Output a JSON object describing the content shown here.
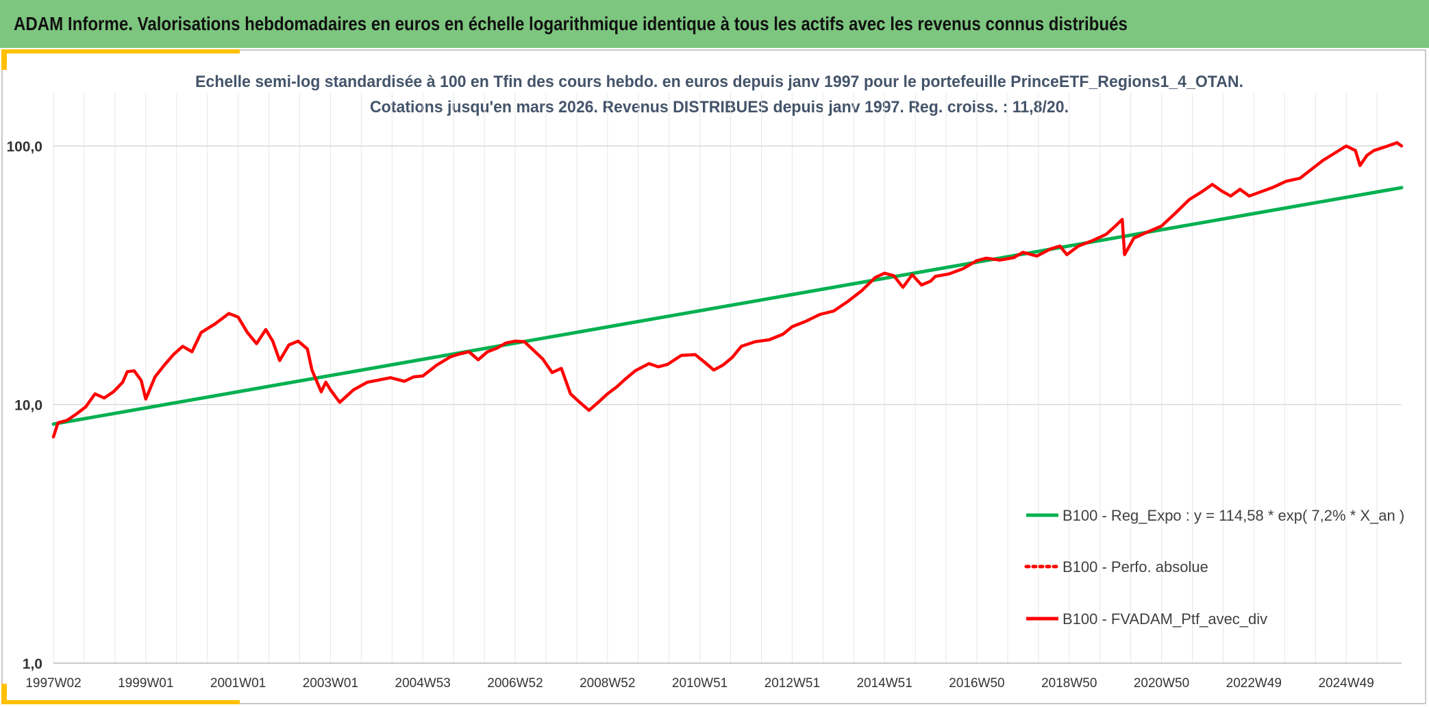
{
  "header": {
    "title": "ADAM Informe. Valorisations hebdomadaires en euros en échelle logarithmique identique à tous les actifs avec les revenus connus distribués"
  },
  "colors": {
    "header_bg": "#7dc67f",
    "accent": "#ffc000",
    "regression": "#00b050",
    "portfolio": "#ff0000",
    "grid": "#d9d9d9",
    "text": "#44546a"
  },
  "chart_data": {
    "type": "line",
    "title": "Echelle semi-log standardisée à 100 en Tfin des cours hebdo. en euros depuis janv 1997 pour le portefeuille PrinceETF_Regions1_4_OTAN.",
    "subtitle": "Cotations jusqu'en mars 2026. Revenus DISTRIBUES depuis janv 1997. Reg. croiss. : 11,8/20.",
    "y_scale": "log",
    "ylim": [
      1,
      160
    ],
    "y_ticks": [
      "1,0",
      "10,0",
      "100,0"
    ],
    "x_ticks": [
      "1997W02",
      "1999W01",
      "2001W01",
      "2003W01",
      "2004W53",
      "2006W52",
      "2008W52",
      "2010W51",
      "2012W51",
      "2014W51",
      "2016W50",
      "2018W50",
      "2020W50",
      "2022W49",
      "2024W49"
    ],
    "grid": true,
    "legend_position": "bottom-right",
    "legend": [
      {
        "label": "B100 - Reg_Expo : y = 114,58 * exp( 7,2% *  X_an )",
        "style": "solid-green"
      },
      {
        "label": "B100 - Perfo. absolue",
        "style": "dotted-red"
      },
      {
        "label": "B100 - FVADAM_Ptf_avec_div",
        "style": "solid-red"
      }
    ],
    "series": [
      {
        "name": "B100 - Reg_Expo : y = 114,58 * exp( 7,2% *  X_an )",
        "x": [
          1997.0,
          2026.2
        ],
        "y": [
          8.4,
          69.0
        ]
      },
      {
        "name": "B100 - FVADAM_Ptf_avec_div",
        "x": [
          1997.0,
          1997.1,
          1997.3,
          1997.5,
          1997.7,
          1997.9,
          1998.1,
          1998.3,
          1998.5,
          1998.6,
          1998.75,
          1998.9,
          1999.0,
          1999.2,
          1999.4,
          1999.6,
          1999.8,
          2000.0,
          2000.2,
          2000.5,
          2000.8,
          2001.0,
          2001.2,
          2001.4,
          2001.6,
          2001.75,
          2001.9,
          2002.1,
          2002.3,
          2002.5,
          2002.6,
          2002.8,
          2002.9,
          2003.0,
          2003.2,
          2003.5,
          2003.8,
          2004.0,
          2004.3,
          2004.6,
          2004.8,
          2005.0,
          2005.3,
          2005.6,
          2005.8,
          2006.0,
          2006.2,
          2006.4,
          2006.6,
          2006.8,
          2007.0,
          2007.2,
          2007.4,
          2007.6,
          2007.8,
          2008.0,
          2008.2,
          2008.4,
          2008.6,
          2008.8,
          2009.0,
          2009.2,
          2009.4,
          2009.6,
          2009.9,
          2010.1,
          2010.3,
          2010.6,
          2010.9,
          2011.1,
          2011.3,
          2011.5,
          2011.7,
          2011.9,
          2012.2,
          2012.5,
          2012.8,
          2013.0,
          2013.3,
          2013.6,
          2013.9,
          2014.2,
          2014.5,
          2014.8,
          2015.0,
          2015.2,
          2015.4,
          2015.6,
          2015.8,
          2016.0,
          2016.1,
          2016.4,
          2016.7,
          2017.0,
          2017.2,
          2017.5,
          2017.8,
          2018.0,
          2018.3,
          2018.6,
          2018.8,
          2018.95,
          2019.2,
          2019.5,
          2019.8,
          2020.0,
          2020.15,
          2020.2,
          2020.4,
          2020.7,
          2021.0,
          2021.3,
          2021.6,
          2021.9,
          2022.1,
          2022.3,
          2022.5,
          2022.7,
          2022.9,
          2023.1,
          2023.4,
          2023.7,
          2024.0,
          2024.2,
          2024.5,
          2024.8,
          2025.0,
          2025.2,
          2025.3,
          2025.45,
          2025.6,
          2025.9,
          2026.1,
          2026.2
        ],
        "y": [
          7.5,
          8.5,
          8.7,
          9.2,
          9.8,
          11.0,
          10.6,
          11.2,
          12.2,
          13.4,
          13.5,
          12.4,
          10.5,
          12.8,
          14.2,
          15.6,
          16.8,
          16.0,
          19.0,
          20.5,
          22.5,
          21.8,
          19.0,
          17.2,
          19.5,
          17.6,
          14.8,
          17.0,
          17.6,
          16.4,
          13.6,
          11.2,
          12.2,
          11.4,
          10.2,
          11.4,
          12.2,
          12.4,
          12.7,
          12.3,
          12.8,
          12.9,
          14.2,
          15.3,
          15.7,
          16.0,
          14.9,
          16.0,
          16.5,
          17.3,
          17.6,
          17.5,
          16.2,
          15.0,
          13.3,
          13.8,
          11.0,
          10.2,
          9.5,
          10.2,
          11.0,
          11.7,
          12.6,
          13.5,
          14.4,
          14.0,
          14.3,
          15.5,
          15.6,
          14.6,
          13.6,
          14.2,
          15.2,
          16.8,
          17.5,
          17.8,
          18.7,
          20.0,
          21.0,
          22.3,
          23.0,
          25.0,
          27.5,
          31.0,
          32.2,
          31.5,
          28.4,
          31.8,
          29.0,
          30.0,
          31.3,
          32.0,
          33.5,
          36.0,
          36.8,
          36.2,
          37.0,
          38.8,
          37.5,
          40.0,
          41.0,
          38.0,
          41.0,
          43.0,
          45.5,
          49.0,
          52.0,
          38.0,
          44.0,
          46.5,
          49.0,
          55.0,
          62.0,
          67.0,
          71.0,
          67.0,
          64.0,
          68.0,
          64.0,
          66.0,
          69.0,
          73.0,
          75.0,
          80.0,
          88.0,
          95.0,
          100.0,
          96.0,
          84.0,
          92.0,
          96.0,
          100.0,
          103.0,
          100.0
        ]
      }
    ]
  }
}
